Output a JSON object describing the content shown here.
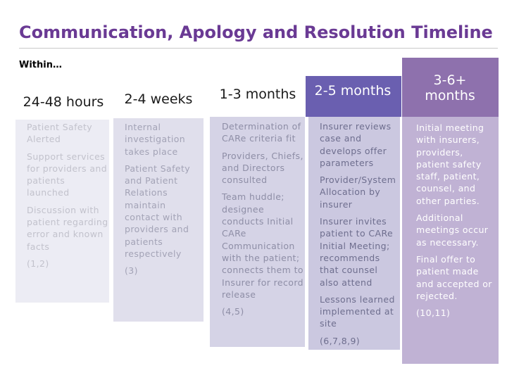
{
  "title": "Communication, Apology and Resolution Timeline",
  "within_label": "Within…",
  "columns": [
    {
      "heading": "24-48 hours",
      "items": [
        "Patient Safety Alerted",
        "Support services for providers and patients launched",
        "Discussion with patient regarding error and known facts"
      ],
      "refs": "(1,2)"
    },
    {
      "heading": "2-4 weeks",
      "items": [
        "Internal investigation takes place",
        "Patient Safety and Patient Relations maintain contact with providers and patients respectively"
      ],
      "refs": "(3)"
    },
    {
      "heading": "1-3 months",
      "items": [
        "Determination of CARe criteria fit",
        "Providers, Chiefs, and Directors consulted",
        "Team huddle; designee conducts Initial CARe Communication with the patient; connects them to Insurer for record release"
      ],
      "refs": "(4,5)"
    },
    {
      "heading": "2-5 months",
      "items": [
        "Insurer reviews case and develops offer parameters",
        "Provider/System Allocation by insurer",
        "Insurer invites patient to CARe Initial Meeting; recommends that counsel also attend",
        "Lessons learned implemented at site"
      ],
      "refs": "(6,7,8,9)"
    },
    {
      "heading": "3-6+ months",
      "items": [
        "Initial meeting with insurers, providers, patient safety staff, patient, counsel, and other parties.",
        "Additional meetings occur as necessary.",
        "Final offer to patient made and accepted or rejected."
      ],
      "refs": "(10,11)"
    }
  ],
  "colors": {
    "title": "#6a3a94",
    "col1_body": "#ececf4",
    "col2_body": "#e0dfec",
    "col3_body": "#d5d3e6",
    "col4_header": "#6a5fb0",
    "col4_body": "#cbc8e0",
    "col5_header": "#8e71ad",
    "col5_body": "#c0b2d4"
  }
}
